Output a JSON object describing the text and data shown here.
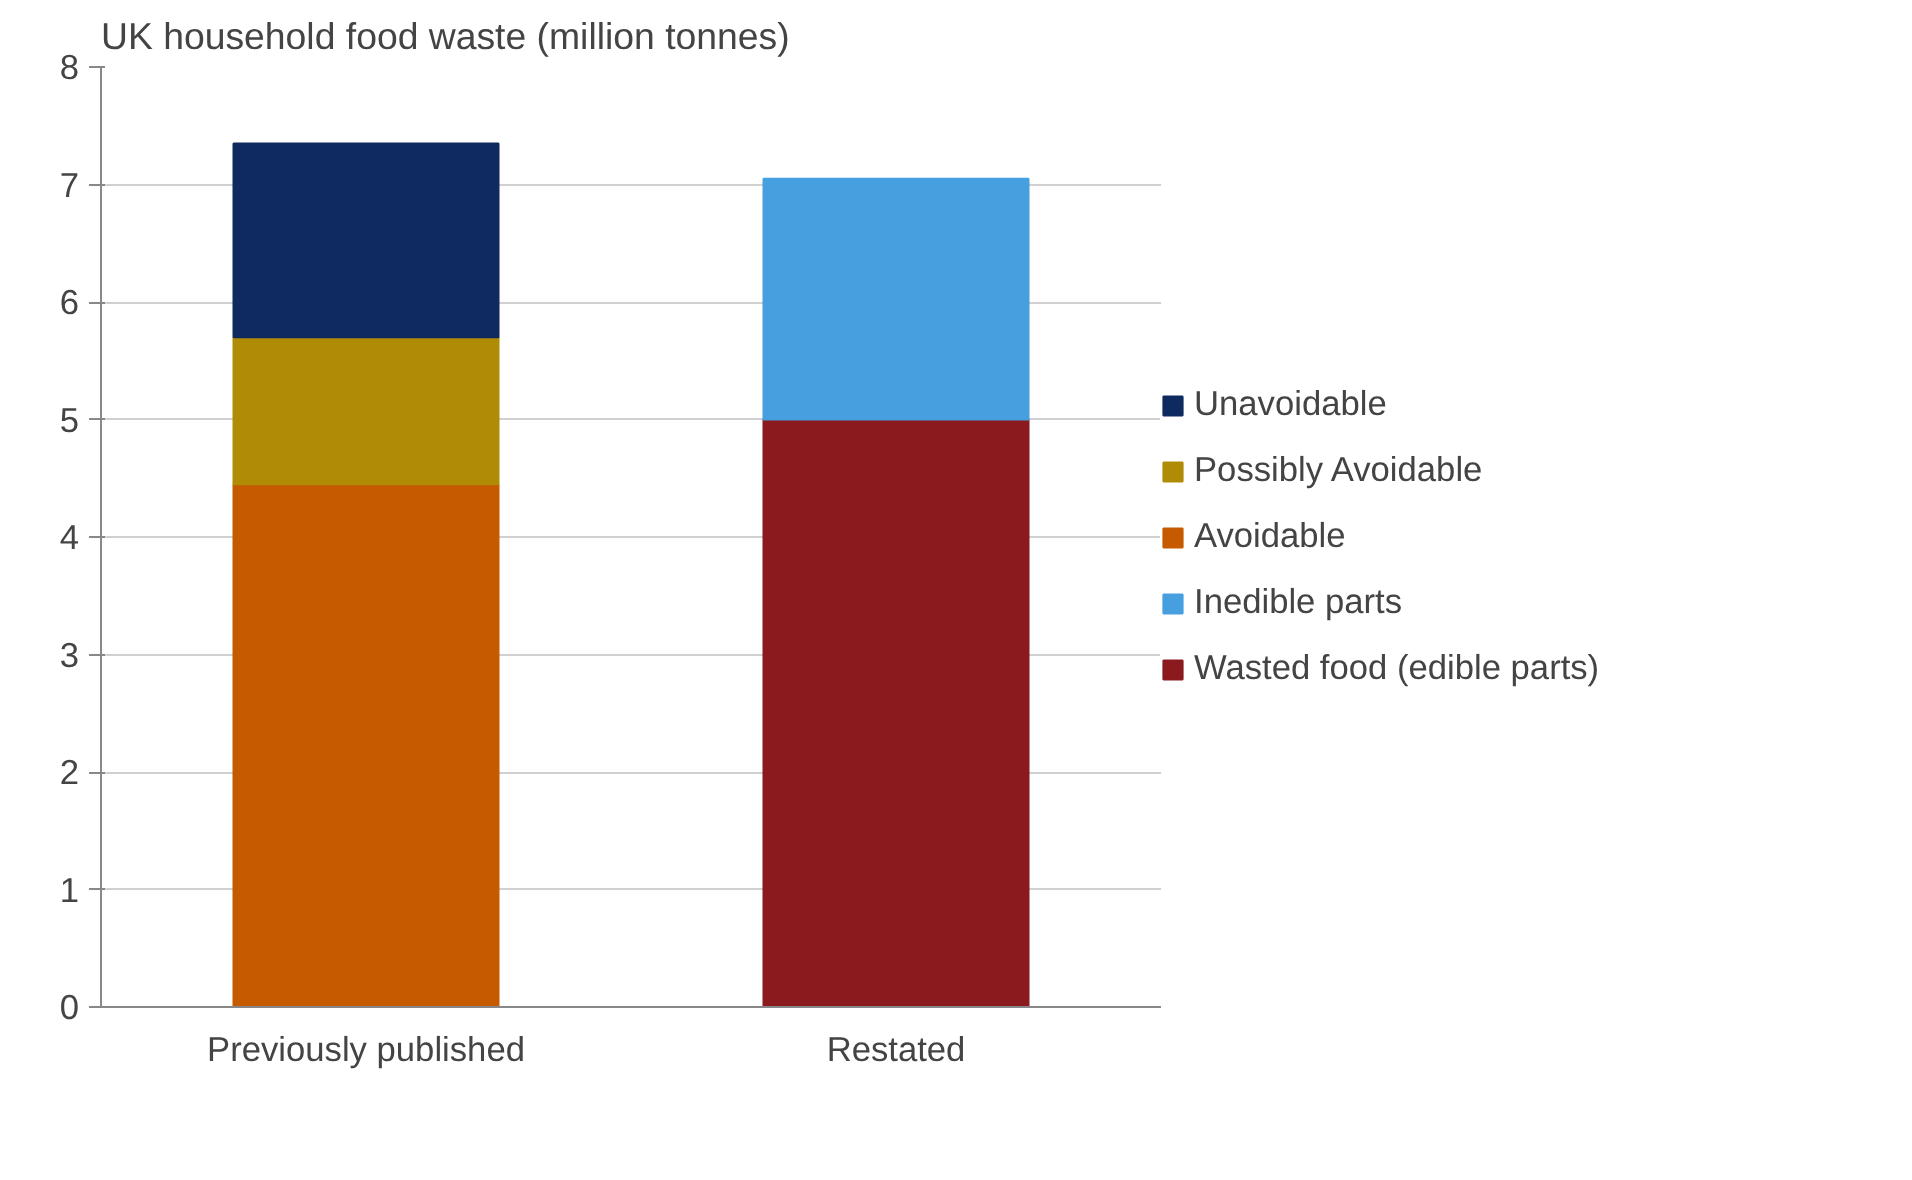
{
  "chart_data": {
    "type": "bar",
    "title": "UK household food waste (million tonnes)",
    "categories": [
      "Previously published",
      "Restated"
    ],
    "stacked": true,
    "series": [
      {
        "name": "Avoidable",
        "color": "#c55a00",
        "values": [
          4.45,
          null
        ]
      },
      {
        "name": "Possibly Avoidable",
        "color": "#b08c06",
        "values": [
          1.25,
          null
        ]
      },
      {
        "name": "Unavoidable",
        "color": "#0f2a5e",
        "values": [
          1.65,
          null
        ]
      },
      {
        "name": "Wasted food (edible parts)",
        "color": "#8b1a1f",
        "values": [
          null,
          5.0
        ]
      },
      {
        "name": "Inedible parts",
        "color": "#46a0e0",
        "values": [
          null,
          2.05
        ]
      }
    ],
    "ylim": [
      0,
      8
    ],
    "yticks": [
      0,
      1,
      2,
      3,
      4,
      5,
      6,
      7,
      8
    ],
    "grid": "y",
    "legend": "right"
  }
}
